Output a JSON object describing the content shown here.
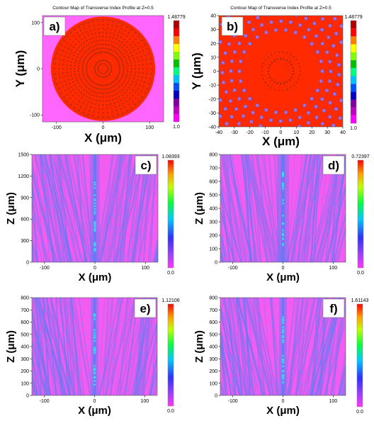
{
  "colors": {
    "background": "#ff66ff",
    "fiber": "#ff2a00",
    "hole": "#a070e0",
    "field_magenta": "#f35cf0",
    "field_purple": "#9a6cf0",
    "field_blue": "#5a7cf5",
    "field_cyan": "#40d8f0"
  },
  "chart_data": [
    {
      "id": "a",
      "type": "heatmap",
      "panel_label": "a)",
      "title": "Contour Map of Transverse Index Profile at Z=0.5",
      "xlabel": "X (μm)",
      "ylabel": "Y (μm)",
      "xlim": [
        -130,
        130
      ],
      "ylim": [
        -115,
        115
      ],
      "xticks": [
        -100,
        0,
        100
      ],
      "yticks": [
        -100,
        0,
        100
      ],
      "colorbar": {
        "max_label": "1.48779",
        "min_label": "1.0",
        "max": 1.48779,
        "min": 1.0,
        "colors": [
          "#ff00ff",
          "#c000c0",
          "#7f00a0",
          "#0000c0",
          "#0050ff",
          "#00c0ff",
          "#00ff80",
          "#00c000",
          "#80ff00",
          "#ffff00",
          "#ff8000",
          "#ff0000",
          "#b00000"
        ]
      },
      "structure": {
        "fiber_radius_um": 112,
        "core_ring_radius_um": 18,
        "hole_rings": 9
      }
    },
    {
      "id": "b",
      "type": "heatmap",
      "panel_label": "b)",
      "title": "Contour Map of Transverse Index Profile at Z=0.5",
      "xlabel": "X (μm)",
      "ylabel": "Y (μm)",
      "xlim": [
        -40,
        40
      ],
      "ylim": [
        -40,
        40
      ],
      "xticks": [
        -40,
        -30,
        -20,
        -10,
        0,
        10,
        20,
        30,
        40
      ],
      "yticks": [
        -40,
        -30,
        -20,
        -10,
        0,
        10,
        20,
        30,
        40
      ],
      "colorbar": {
        "max_label": "1.48779",
        "min_label": "1.0",
        "max": 1.48779,
        "min": 1.0,
        "colors": [
          "#ff00ff",
          "#c000c0",
          "#7f00a0",
          "#0000c0",
          "#0050ff",
          "#00c0ff",
          "#00ff80",
          "#00c000",
          "#80ff00",
          "#ffff00",
          "#ff8000",
          "#ff0000",
          "#b00000"
        ]
      },
      "structure": {
        "core_radius_um": 24,
        "inner_ring_radius_um": 8
      }
    },
    {
      "id": "c",
      "type": "heatmap",
      "panel_label": "c)",
      "xlabel": "X (μm)",
      "ylabel": "Z (μm)",
      "xlim": [
        -125,
        125
      ],
      "ylim": [
        0,
        1500
      ],
      "xticks": [
        -100,
        0,
        100
      ],
      "yticks": [
        0,
        300,
        600,
        900,
        1200,
        1500
      ],
      "colorbar": {
        "max_label": "1.08393",
        "min_label": "0.0",
        "max": 1.08393,
        "min": 0.0
      },
      "field": {
        "beam_center_um": 0,
        "beam_width_um": 6
      }
    },
    {
      "id": "d",
      "type": "heatmap",
      "panel_label": "d)",
      "xlabel": "X (μm)",
      "ylabel": "Z (μm)",
      "xlim": [
        -125,
        125
      ],
      "ylim": [
        0,
        800
      ],
      "xticks": [
        -100,
        0,
        100
      ],
      "yticks": [
        0,
        100,
        200,
        300,
        400,
        500,
        600,
        700,
        800
      ],
      "colorbar": {
        "max_label": "0.72397",
        "min_label": "0.0",
        "max": 0.72397,
        "min": 0.0
      },
      "field": {
        "beam_center_um": 0,
        "beam_width_um": 8
      }
    },
    {
      "id": "e",
      "type": "heatmap",
      "panel_label": "e)",
      "xlabel": "X (μm)",
      "ylabel": "Z (μm)",
      "xlim": [
        -125,
        125
      ],
      "ylim": [
        0,
        800
      ],
      "xticks": [
        -100,
        0,
        100
      ],
      "yticks": [
        0,
        100,
        200,
        300,
        400,
        500,
        600,
        700,
        800
      ],
      "colorbar": {
        "max_label": "1.12106",
        "min_label": "0.0",
        "max": 1.12106,
        "min": 0.0
      },
      "field": {
        "beam_center_um": 0,
        "beam_width_um": 5
      }
    },
    {
      "id": "f",
      "type": "heatmap",
      "panel_label": "f)",
      "xlabel": "X (μm)",
      "ylabel": "Z (μm)",
      "xlim": [
        -125,
        125
      ],
      "ylim": [
        0,
        800
      ],
      "xticks": [
        -100,
        0,
        100
      ],
      "yticks": [
        0,
        100,
        200,
        300,
        400,
        500,
        600,
        700,
        800
      ],
      "colorbar": {
        "max_label": "1.61143",
        "min_label": "0.0",
        "max": 1.61143,
        "min": 0.0
      },
      "field": {
        "beam_center_um": 0,
        "beam_width_um": 5
      }
    }
  ]
}
